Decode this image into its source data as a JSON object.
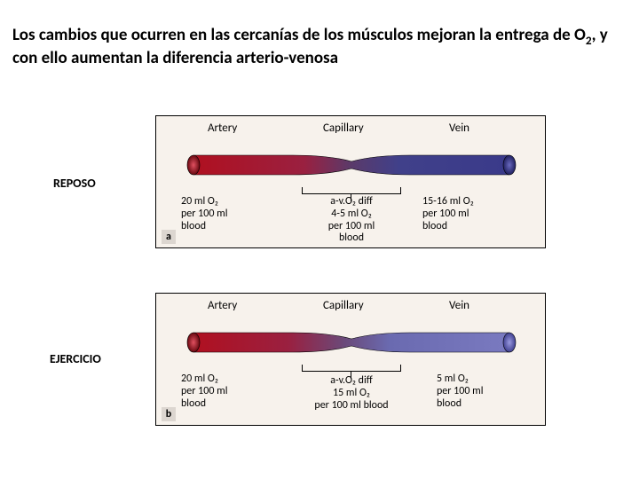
{
  "title_html": "Los cambios que ocurren en las cercanías de los músculos mejoran la entrega de O<sub>2</sub>, y con ello aumentan la diferencia arterio-venosa",
  "label_reposo": "REPOSO",
  "label_ejercicio": "EJERCICIO",
  "labels": {
    "artery": "Artery",
    "capillary": "Capillary",
    "vein": "Vein"
  },
  "panel_a": {
    "letter": "a",
    "artery_val": "20 ml O₂\nper 100 ml\nblood",
    "diff_val": "a-v.O₂ diff\n4-5 ml O₂\nper 100 ml\nblood",
    "vein_val": "15-16 ml O₂\nper 100 ml\nblood"
  },
  "panel_b": {
    "letter": "b",
    "artery_val": "20 ml O₂\nper 100 ml\nblood",
    "diff_val": "a-v.O₂ diff\n15 ml O₂\nper 100 ml blood",
    "vein_val": "5 ml O₂\nper 100 ml\nblood"
  },
  "colors": {
    "artery": "#b01020",
    "artery_dark": "#6a0810",
    "capillary": "#5a3a6a",
    "vein_a": "#3a3a8a",
    "vein_b": "#5a5aa0",
    "panel_bg": "#f7f2ec"
  }
}
